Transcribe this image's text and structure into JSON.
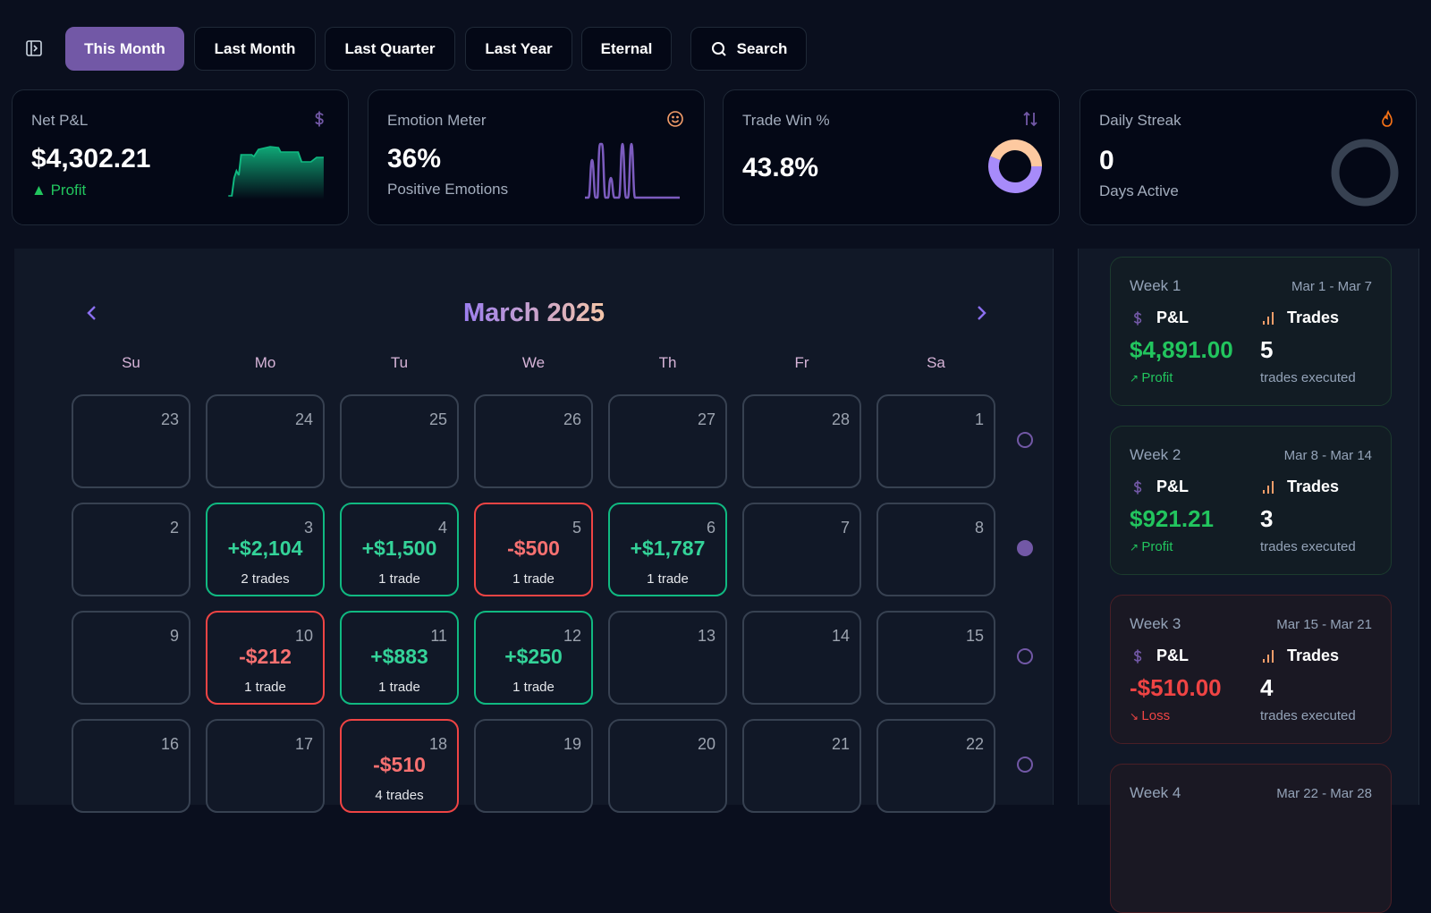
{
  "toolbar": {
    "tabs": [
      {
        "label": "This Month",
        "active": true
      },
      {
        "label": "Last Month"
      },
      {
        "label": "Last Quarter"
      },
      {
        "label": "Last Year"
      },
      {
        "label": "Eternal"
      }
    ],
    "search_label": "Search"
  },
  "stats": {
    "net_pl": {
      "title": "Net P&L",
      "value": "$4,302.21",
      "status": "Profit",
      "icon": "dollar-icon"
    },
    "emotion": {
      "title": "Emotion Meter",
      "value": "36%",
      "subtitle": "Positive Emotions",
      "icon": "smile-icon"
    },
    "win": {
      "title": "Trade Win %",
      "value": "43.8%",
      "win_fraction": 0.438,
      "icon": "arrows-up-down-icon"
    },
    "streak": {
      "title": "Daily Streak",
      "value": "0",
      "subtitle": "Days Active",
      "icon": "flame-icon"
    }
  },
  "colors": {
    "accent": "#7258a6",
    "profit": "#34d399",
    "loss": "#f87171"
  },
  "calendar": {
    "month_title": "March 2025",
    "weekdays": [
      "Su",
      "Mo",
      "Tu",
      "We",
      "Th",
      "Fr",
      "Sa"
    ],
    "weeks": [
      [
        {
          "day": "23"
        },
        {
          "day": "24"
        },
        {
          "day": "25"
        },
        {
          "day": "26"
        },
        {
          "day": "27"
        },
        {
          "day": "28"
        },
        {
          "day": "1"
        }
      ],
      [
        {
          "day": "2"
        },
        {
          "day": "3",
          "pl": "+$2,104",
          "trades": "2 trades",
          "result": "win"
        },
        {
          "day": "4",
          "pl": "+$1,500",
          "trades": "1 trade",
          "result": "win"
        },
        {
          "day": "5",
          "pl": "-$500",
          "trades": "1 trade",
          "result": "loss"
        },
        {
          "day": "6",
          "pl": "+$1,787",
          "trades": "1 trade",
          "result": "win"
        },
        {
          "day": "7"
        },
        {
          "day": "8"
        }
      ],
      [
        {
          "day": "9"
        },
        {
          "day": "10",
          "pl": "-$212",
          "trades": "1 trade",
          "result": "loss"
        },
        {
          "day": "11",
          "pl": "+$883",
          "trades": "1 trade",
          "result": "win"
        },
        {
          "day": "12",
          "pl": "+$250",
          "trades": "1 trade",
          "result": "win"
        },
        {
          "day": "13"
        },
        {
          "day": "14"
        },
        {
          "day": "15"
        }
      ],
      [
        {
          "day": "16"
        },
        {
          "day": "17"
        },
        {
          "day": "18",
          "pl": "-$510",
          "trades": "4 trades",
          "result": "loss"
        },
        {
          "day": "19"
        },
        {
          "day": "20"
        },
        {
          "day": "21"
        },
        {
          "day": "22"
        }
      ]
    ],
    "week_selected": [
      false,
      true,
      false,
      false
    ]
  },
  "weekly": [
    {
      "name": "Week 1",
      "range": "Mar 1 - Mar 7",
      "pl_label": "P&L",
      "trades_label": "Trades",
      "pl": "$4,891.00",
      "trades": "5",
      "status": "Profit",
      "executed": "trades executed",
      "result": "win"
    },
    {
      "name": "Week 2",
      "range": "Mar 8 - Mar 14",
      "pl_label": "P&L",
      "trades_label": "Trades",
      "pl": "$921.21",
      "trades": "3",
      "status": "Profit",
      "executed": "trades executed",
      "result": "win"
    },
    {
      "name": "Week 3",
      "range": "Mar 15 - Mar 21",
      "pl_label": "P&L",
      "trades_label": "Trades",
      "pl": "-$510.00",
      "trades": "4",
      "status": "Loss",
      "executed": "trades executed",
      "result": "loss"
    },
    {
      "name": "Week 4",
      "range": "Mar 22 - Mar 28",
      "result": "loss"
    }
  ]
}
